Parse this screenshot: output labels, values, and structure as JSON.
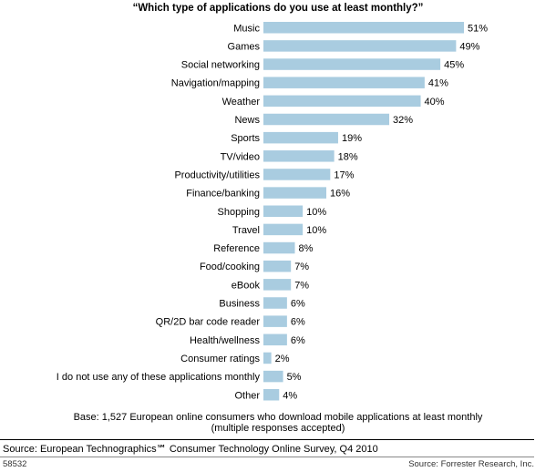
{
  "chart_data": {
    "type": "bar",
    "orientation": "horizontal",
    "title": "“Which type of applications do you use at least monthly?”",
    "categories": [
      "Music",
      "Games",
      "Social networking",
      "Navigation/mapping",
      "Weather",
      "News",
      "Sports",
      "TV/video",
      "Productivity/utilities",
      "Finance/banking",
      "Shopping",
      "Travel",
      "Reference",
      "Food/cooking",
      "eBook",
      "Business",
      "QR/2D bar code reader",
      "Health/wellness",
      "Consumer ratings",
      "I do not use any of these applications monthly",
      "Other"
    ],
    "values": [
      51,
      49,
      45,
      41,
      40,
      32,
      19,
      18,
      17,
      16,
      10,
      10,
      8,
      7,
      7,
      6,
      6,
      6,
      2,
      5,
      4
    ],
    "value_labels": [
      "51%",
      "49%",
      "45%",
      "41%",
      "40%",
      "32%",
      "19%",
      "18%",
      "17%",
      "16%",
      "10%",
      "10%",
      "8%",
      "7%",
      "7%",
      "6%",
      "6%",
      "6%",
      "2%",
      "5%",
      "4%"
    ],
    "xlim": [
      0,
      51
    ],
    "grid": false,
    "bar_color": "#a9cce0"
  },
  "notes": {
    "base_line1": "Base: 1,527 European online consumers who download mobile applications at least monthly",
    "base_line2": "(multiple responses accepted)"
  },
  "source": "Source: European Technographics℠ Consumer Technology Online Survey, Q4 2010",
  "footer": {
    "id": "58532",
    "source": "Source: Forrester Research, Inc."
  }
}
